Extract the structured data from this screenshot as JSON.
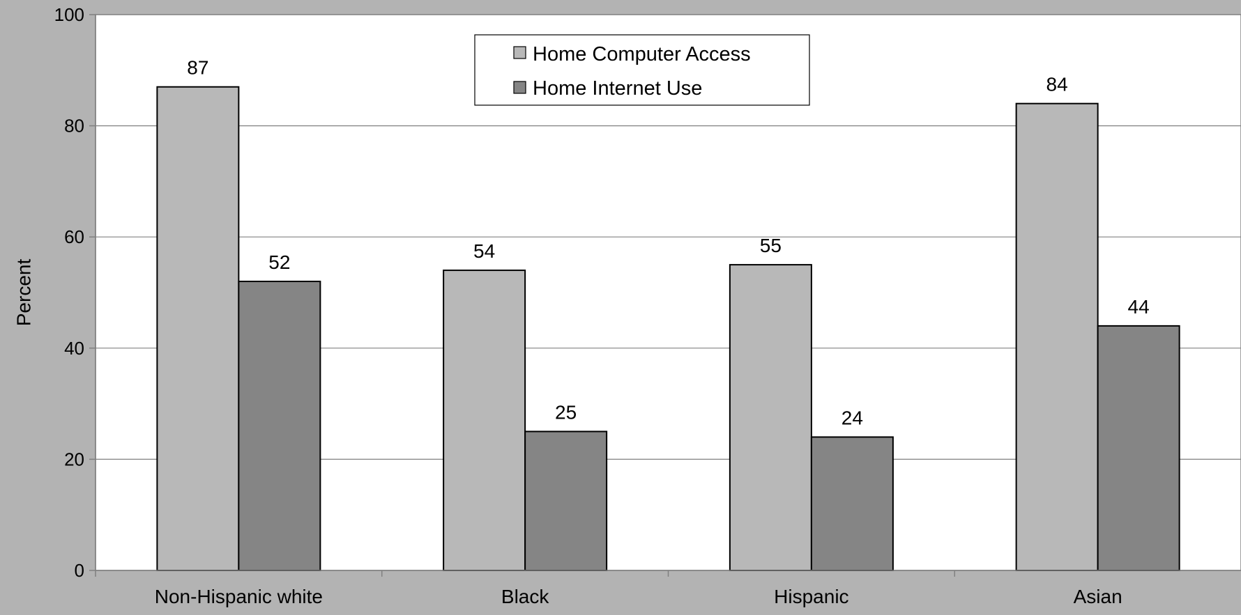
{
  "chart_data": {
    "type": "bar",
    "categories": [
      "Non-Hispanic white",
      "Black",
      "Hispanic",
      "Asian"
    ],
    "series": [
      {
        "name": "Home Computer Access",
        "values": [
          87,
          54,
          55,
          84
        ],
        "labels": [
          "87",
          "54",
          "55",
          "84"
        ],
        "color": "#b8b8b8"
      },
      {
        "name": "Home Internet Use",
        "values": [
          52,
          25,
          24,
          44
        ],
        "labels": [
          "52",
          "25",
          "24",
          "44"
        ],
        "color": "#858585"
      }
    ],
    "ylabel": "Percent",
    "ylim": [
      0,
      100
    ],
    "yticks": [
      0,
      20,
      40,
      60,
      80,
      100
    ],
    "ytick_labels": [
      "0",
      "20",
      "40",
      "60",
      "80",
      "100"
    ],
    "grid": true,
    "legend_position": "top-center",
    "plot_background": "#ffffff",
    "page_background": "#b3b3b3"
  }
}
